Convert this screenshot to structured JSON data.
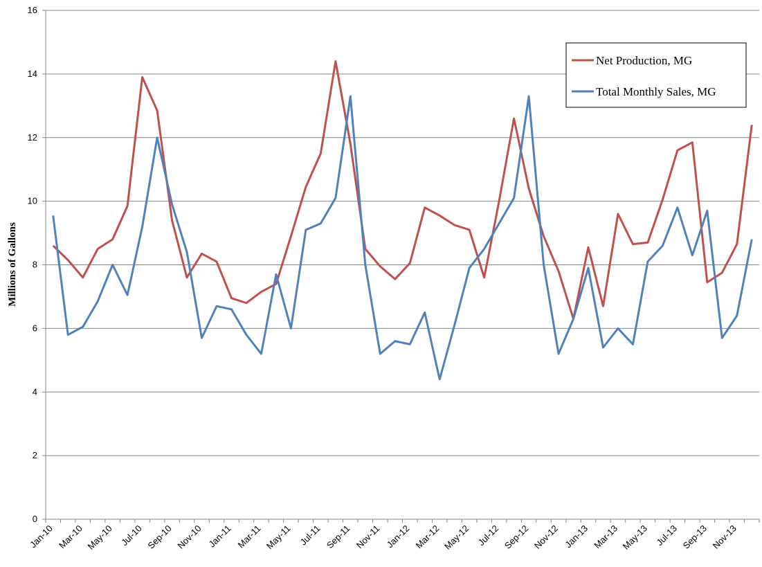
{
  "chart_data": {
    "type": "line",
    "y_axis_label": "Millions of Gallons",
    "categories": [
      "Jan-10",
      null,
      "Mar-10",
      null,
      "May-10",
      null,
      "Jul-10",
      null,
      "Sep-10",
      null,
      "Nov-10",
      null,
      "Jan-11",
      null,
      "Mar-11",
      null,
      "May-11",
      null,
      "Jul-11",
      null,
      "Sep-11",
      null,
      "Nov-11",
      null,
      "Jan-12",
      null,
      "Mar-12",
      null,
      "May-12",
      null,
      "Jul-12",
      null,
      "Sep-12",
      null,
      "Nov-12",
      null,
      "Jan-13",
      null,
      "Mar-13",
      null,
      "May-13",
      null,
      "Jul-13",
      null,
      "Sep-13",
      null,
      "Nov-13",
      null
    ],
    "series": [
      {
        "name": "Net Production, MG",
        "color": "#c0504d",
        "values": [
          8.6,
          8.15,
          7.6,
          8.5,
          8.8,
          9.85,
          13.9,
          12.85,
          9.4,
          7.6,
          8.35,
          8.1,
          6.95,
          6.8,
          7.15,
          7.4,
          8.9,
          10.45,
          11.5,
          14.4,
          11.8,
          8.5,
          7.95,
          7.55,
          8.05,
          9.8,
          9.55,
          9.25,
          9.1,
          7.6,
          10.0,
          12.6,
          10.4,
          8.9,
          7.8,
          6.3,
          8.55,
          6.7,
          9.6,
          8.65,
          8.7,
          10.05,
          11.6,
          11.85,
          7.45,
          7.75,
          8.65,
          12.4
        ]
      },
      {
        "name": "Total Monthly Sales, MG",
        "color": "#4f81bd",
        "values": [
          9.55,
          5.8,
          6.05,
          6.85,
          8.0,
          7.05,
          9.2,
          12.0,
          9.9,
          8.4,
          5.7,
          6.7,
          6.6,
          5.8,
          5.2,
          7.7,
          6.0,
          9.1,
          9.3,
          10.1,
          13.3,
          8.0,
          5.2,
          5.6,
          5.5,
          6.5,
          4.4,
          6.1,
          7.9,
          8.5,
          9.3,
          10.1,
          13.3,
          8.0,
          5.2,
          6.3,
          7.9,
          5.4,
          6.0,
          5.5,
          8.1,
          8.6,
          9.8,
          8.3,
          9.7,
          5.7,
          6.4,
          8.8
        ]
      }
    ],
    "ylim": [
      0,
      16
    ],
    "yticks": [
      0,
      2,
      4,
      6,
      8,
      10,
      12,
      14,
      16
    ],
    "grid": true,
    "legend": "top-right"
  }
}
